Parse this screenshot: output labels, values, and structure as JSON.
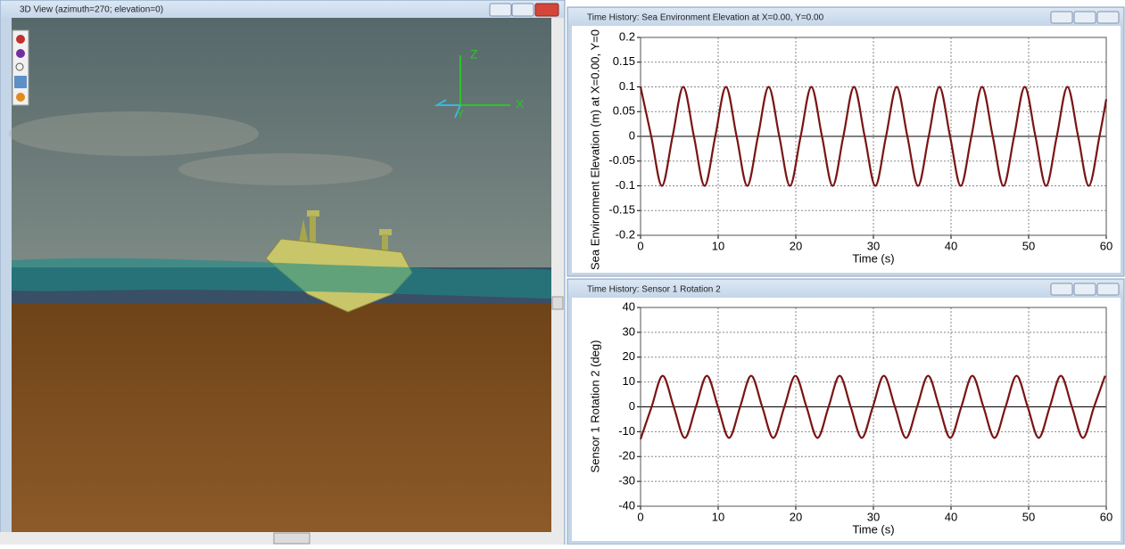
{
  "view3d": {
    "title": "3D View (azimuth=270; elevation=0)",
    "axis_labels": [
      "Z",
      "X",
      "Y"
    ]
  },
  "chart_data": [
    {
      "type": "line",
      "window_title": "Time History: Sea Environment Elevation at X=0.00, Y=0.00",
      "xlabel": "Time (s)",
      "ylabel": "Sea Environment Elevation (m) at X=0.00, Y=0",
      "x": [
        0,
        1.375,
        2.75,
        4.125,
        5.5,
        6.875,
        8.25,
        9.625,
        11,
        12.375,
        13.75,
        15.125,
        16.5,
        17.875,
        19.25,
        20.625,
        22,
        23.375,
        24.75,
        26.125,
        27.5,
        28.875,
        30.25,
        31.625,
        33,
        34.375,
        35.75,
        37.125,
        38.5,
        39.875,
        41.25,
        42.625,
        44,
        45.375,
        46.75,
        48.125,
        49.5,
        50.875,
        52.25,
        53.625,
        55,
        56.375,
        57.75,
        59.125,
        60
      ],
      "series": [
        {
          "color": "#7a1414",
          "values": [
            0.1,
            0,
            -0.1,
            0,
            0.1,
            0,
            -0.1,
            0,
            0.1,
            0,
            -0.1,
            0,
            0.1,
            0,
            -0.1,
            0,
            0.1,
            0,
            -0.1,
            0,
            0.1,
            0,
            -0.1,
            0,
            0.1,
            0,
            -0.1,
            0,
            0.1,
            0,
            -0.1,
            0,
            0.1,
            0,
            -0.1,
            0,
            0.1,
            0,
            -0.1,
            0,
            0.1,
            0,
            -0.1,
            0,
            0.075
          ]
        }
      ],
      "xlim": [
        0,
        60
      ],
      "ylim": [
        -0.2,
        0.2
      ],
      "xticks": [
        0,
        10,
        20,
        30,
        40,
        50,
        60
      ],
      "yticks": [
        -0.2,
        -0.15,
        -0.1,
        -0.05,
        0,
        0.05,
        0.1,
        0.15,
        0.2
      ],
      "grid": true
    },
    {
      "type": "line",
      "window_title": "Time History: Sensor 1 Rotation 2",
      "xlabel": "Time (s)",
      "ylabel": "Sensor 1 Rotation 2 (deg)",
      "x": [
        0,
        1.425,
        2.85,
        4.275,
        5.7,
        7.125,
        8.55,
        9.975,
        11.4,
        12.825,
        14.25,
        15.675,
        17.1,
        18.525,
        19.95,
        21.375,
        22.8,
        24.225,
        25.65,
        27.075,
        28.5,
        29.925,
        31.35,
        32.775,
        34.2,
        35.625,
        37.05,
        38.475,
        39.9,
        41.325,
        42.75,
        44.175,
        45.6,
        47.025,
        48.45,
        49.875,
        51.3,
        52.725,
        54.15,
        55.575,
        57,
        58.425,
        59.85
      ],
      "series": [
        {
          "color": "#7a1414",
          "values": [
            -13,
            0,
            12.5,
            0,
            -12.5,
            0,
            12.5,
            0,
            -12.5,
            0,
            12.5,
            0,
            -12.5,
            0,
            12.5,
            0,
            -12.5,
            0,
            12.5,
            0,
            -12.5,
            0,
            12.5,
            0,
            -12.5,
            0,
            12.5,
            0,
            -12.5,
            0,
            12.5,
            0,
            -12.5,
            0,
            12.5,
            0,
            -12.5,
            0,
            12.5,
            0,
            -12.5,
            0,
            12.5
          ]
        }
      ],
      "xlim": [
        0,
        60
      ],
      "ylim": [
        -40,
        40
      ],
      "xticks": [
        0,
        10,
        20,
        30,
        40,
        50,
        60
      ],
      "yticks": [
        -40,
        -30,
        -20,
        -10,
        0,
        10,
        20,
        30,
        40
      ],
      "grid": true
    }
  ]
}
